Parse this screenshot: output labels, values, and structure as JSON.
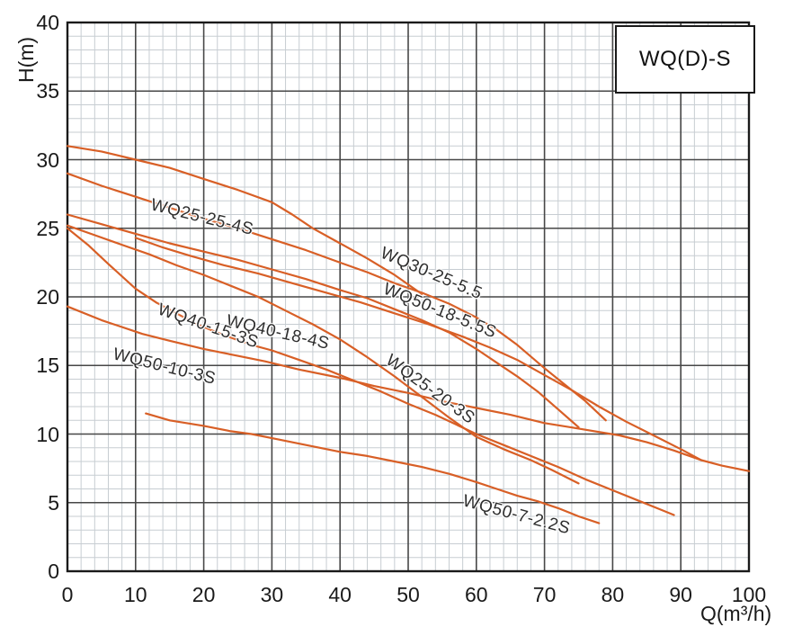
{
  "legend_box": {
    "label": "WQ(D)-S"
  },
  "chart_data": {
    "type": "line",
    "title": "WQ(D)-S",
    "xlabel": "Q(m³/h)",
    "ylabel": "H(m)",
    "xlim": [
      0,
      100
    ],
    "ylim": [
      0,
      40
    ],
    "x_major_step": 10,
    "x_minor_step": 2,
    "y_major_step": 5,
    "y_minor_step": 1,
    "x_ticks": [
      0,
      10,
      20,
      30,
      40,
      50,
      60,
      70,
      80,
      90,
      100
    ],
    "y_ticks": [
      0,
      5,
      10,
      15,
      20,
      25,
      30,
      35,
      40
    ],
    "grid": true,
    "legend_position": "top-right-box",
    "curve_color": "#d85f26",
    "minor_grid_color": "#c7cdd2",
    "major_grid_color": "#474747",
    "frame_color": "#1a1a1a",
    "series": [
      {
        "name": "WQ25-25-4S",
        "points": [
          [
            0,
            31
          ],
          [
            5,
            30.6
          ],
          [
            10,
            30
          ],
          [
            15,
            29.4
          ],
          [
            20,
            28.6
          ],
          [
            25,
            27.8
          ],
          [
            30,
            26.9
          ],
          [
            33,
            26
          ],
          [
            36,
            25
          ],
          [
            40,
            23.9
          ],
          [
            44,
            22.8
          ],
          [
            48,
            21.6
          ],
          [
            52,
            20.2
          ]
        ],
        "label": {
          "q": 12.3,
          "h": 26.7,
          "angle": 14
        }
      },
      {
        "name": "WQ30-25-5.5",
        "points": [
          [
            0,
            29
          ],
          [
            5,
            28.1
          ],
          [
            10,
            27.3
          ],
          [
            15,
            26.5
          ],
          [
            20,
            25.7
          ],
          [
            25,
            25
          ],
          [
            30,
            24.2
          ],
          [
            35,
            23.4
          ],
          [
            40,
            22.5
          ],
          [
            44,
            21.8
          ],
          [
            48,
            21
          ],
          [
            52,
            20.3
          ],
          [
            56,
            19.5
          ],
          [
            60,
            18.5
          ],
          [
            63,
            17.6
          ],
          [
            66,
            16.5
          ],
          [
            70,
            14.8
          ],
          [
            73,
            13.6
          ],
          [
            76,
            12.4
          ],
          [
            79,
            11
          ]
        ],
        "label": {
          "q": 46.0,
          "h": 23.2,
          "angle": 23
        }
      },
      {
        "name": "WQ50-18-5.5S",
        "points": [
          [
            10,
            24.3
          ],
          [
            14,
            23.6
          ],
          [
            18,
            23
          ],
          [
            23,
            22.3
          ],
          [
            28,
            21.7
          ],
          [
            33,
            21
          ],
          [
            38,
            20.3
          ],
          [
            43,
            19.6
          ],
          [
            48,
            18.8
          ],
          [
            53,
            18
          ],
          [
            58,
            17.1
          ],
          [
            62,
            16.3
          ],
          [
            66,
            15.4
          ],
          [
            70,
            14.3
          ],
          [
            74,
            13.2
          ],
          [
            78,
            12
          ],
          [
            82,
            10.9
          ],
          [
            86,
            9.9
          ],
          [
            90,
            8.9
          ],
          [
            93,
            8.1
          ],
          [
            96,
            7.7
          ],
          [
            100,
            7.3
          ]
        ],
        "label": {
          "q": 46.5,
          "h": 20.6,
          "angle": 22
        }
      },
      {
        "name": "WQ40-18-4S",
        "points": [
          [
            0,
            26
          ],
          [
            5,
            25.3
          ],
          [
            10,
            24.6
          ],
          [
            15,
            23.9
          ],
          [
            20,
            23.3
          ],
          [
            25,
            22.7
          ],
          [
            30,
            22
          ],
          [
            35,
            21.3
          ],
          [
            40,
            20.5
          ],
          [
            44,
            19.9
          ],
          [
            48,
            19.1
          ],
          [
            52,
            18.3
          ],
          [
            56,
            17.4
          ],
          [
            60,
            16.2
          ],
          [
            63,
            15.2
          ],
          [
            66,
            14.2
          ],
          [
            69,
            13.1
          ],
          [
            72,
            11.8
          ],
          [
            75,
            10.5
          ]
        ],
        "label": {
          "q": 23.3,
          "h": 18.2,
          "angle": 13
        }
      },
      {
        "name": "WQ40-15-3S",
        "points": [
          [
            0,
            25
          ],
          [
            3,
            23.8
          ],
          [
            6,
            22.4
          ],
          [
            10,
            20.6
          ],
          [
            13,
            19.6
          ],
          [
            16,
            18.8
          ],
          [
            19,
            18
          ],
          [
            23,
            17.2
          ],
          [
            27,
            16.5
          ],
          [
            30,
            16.1
          ],
          [
            34,
            15.4
          ],
          [
            38,
            14.7
          ],
          [
            42,
            13.9
          ],
          [
            46,
            13.1
          ],
          [
            50,
            12.2
          ],
          [
            54,
            11.4
          ],
          [
            57,
            10.7
          ],
          [
            60,
            10
          ],
          [
            64,
            9.2
          ],
          [
            68,
            8.4
          ],
          [
            72,
            7.6
          ],
          [
            76,
            6.7
          ],
          [
            80,
            5.9
          ],
          [
            84,
            5.1
          ],
          [
            87,
            4.5
          ],
          [
            89,
            4.1
          ]
        ],
        "label": {
          "q": 13.3,
          "h": 19.1,
          "angle": 19
        }
      },
      {
        "name": "WQ25-20-3S",
        "points": [
          [
            0,
            25.2
          ],
          [
            4,
            24.5
          ],
          [
            8,
            23.8
          ],
          [
            12,
            23.1
          ],
          [
            16,
            22.3
          ],
          [
            20,
            21.6
          ],
          [
            24,
            20.8
          ],
          [
            28,
            20
          ],
          [
            32,
            19
          ],
          [
            36,
            18
          ],
          [
            40,
            16.9
          ],
          [
            44,
            15.6
          ],
          [
            48,
            14.2
          ],
          [
            52,
            12.7
          ],
          [
            56,
            11.2
          ],
          [
            60,
            9.8
          ],
          [
            64,
            8.9
          ],
          [
            68,
            8.1
          ],
          [
            71,
            7.4
          ],
          [
            75,
            6.4
          ]
        ],
        "label": {
          "q": 47.0,
          "h": 15.5,
          "angle": 36
        }
      },
      {
        "name": "WQ50-10-3S",
        "points": [
          [
            0,
            19.3
          ],
          [
            5,
            18.3
          ],
          [
            11,
            17.3
          ],
          [
            15,
            16.8
          ],
          [
            20,
            16.2
          ],
          [
            25,
            15.7
          ],
          [
            29,
            15.3
          ],
          [
            34,
            14.7
          ],
          [
            40,
            14.1
          ],
          [
            45,
            13.5
          ],
          [
            50,
            13
          ],
          [
            55,
            12.4
          ],
          [
            60,
            11.9
          ],
          [
            65,
            11.4
          ],
          [
            70,
            10.8
          ],
          [
            75,
            10.4
          ],
          [
            81,
            9.9
          ],
          [
            85,
            9.4
          ],
          [
            89,
            8.8
          ],
          [
            93,
            8.1
          ]
        ],
        "label": {
          "q": 6.7,
          "h": 15.8,
          "angle": 14
        }
      },
      {
        "name": "WQ50-7-2.2S",
        "points": [
          [
            11.5,
            11.5
          ],
          [
            15,
            11
          ],
          [
            20,
            10.6
          ],
          [
            24,
            10.2
          ],
          [
            27,
            10
          ],
          [
            31,
            9.6
          ],
          [
            35,
            9.2
          ],
          [
            40,
            8.7
          ],
          [
            44,
            8.4
          ],
          [
            48,
            8
          ],
          [
            52,
            7.6
          ],
          [
            56,
            7.1
          ],
          [
            60,
            6.5
          ],
          [
            63,
            6
          ],
          [
            66,
            5.5
          ],
          [
            69,
            5.1
          ],
          [
            72,
            4.6
          ],
          [
            75,
            4
          ],
          [
            78,
            3.5
          ]
        ],
        "label": {
          "q": 58.0,
          "h": 5.1,
          "angle": 15
        }
      }
    ]
  }
}
